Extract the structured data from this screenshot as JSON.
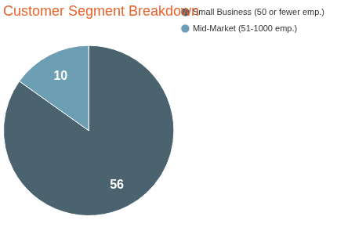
{
  "chart_data": {
    "type": "pie",
    "title": "Customer Segment Breakdown",
    "categories": [
      "Small Business (50 or fewer emp.)",
      "Mid-Market (51-1000 emp.)"
    ],
    "values": [
      56,
      10
    ],
    "colors": [
      "#4a636f",
      "#6c9fb3"
    ],
    "legend": "right",
    "data_labels": true
  }
}
